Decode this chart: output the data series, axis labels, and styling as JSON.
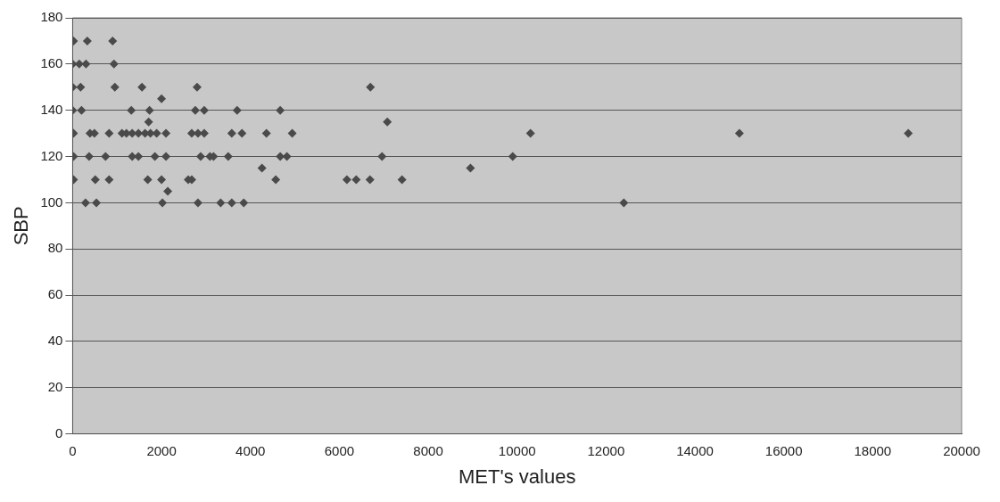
{
  "chart_data": {
    "type": "scatter",
    "xlabel": "MET's values",
    "ylabel": "SBP",
    "xlim": [
      0,
      20000
    ],
    "xticks": [
      0,
      2000,
      4000,
      6000,
      8000,
      10000,
      12000,
      14000,
      16000,
      18000,
      20000
    ],
    "ylim": [
      0,
      180
    ],
    "yticks": [
      0,
      20,
      40,
      60,
      80,
      100,
      120,
      140,
      160,
      180
    ],
    "grid": "y",
    "marker": "diamond",
    "legend": false,
    "series": [
      {
        "color": "#4a4a4a",
        "x": [
          20,
          330,
          900,
          0,
          150,
          300,
          930,
          0,
          180,
          950,
          1560,
          2800,
          6700,
          2000,
          0,
          200,
          1320,
          1730,
          2760,
          2960,
          3700,
          4670,
          1710,
          7080,
          20,
          390,
          490,
          820,
          1110,
          1210,
          1340,
          1480,
          1630,
          1750,
          1890,
          2100,
          2680,
          2820,
          2960,
          3580,
          3810,
          4360,
          4940,
          10300,
          15000,
          18800,
          20,
          370,
          740,
          1340,
          1480,
          1850,
          2100,
          2880,
          3090,
          3170,
          3500,
          4670,
          4820,
          6960,
          9900,
          4260,
          8950,
          20,
          510,
          820,
          1690,
          2000,
          2600,
          2680,
          4570,
          6170,
          6380,
          6690,
          7410,
          2140,
          290,
          535,
          2020,
          2820,
          3330,
          3580,
          3850,
          12400
        ],
        "values": [
          170,
          170,
          170,
          160,
          160,
          160,
          160,
          150,
          150,
          150,
          150,
          150,
          150,
          145,
          140,
          140,
          140,
          140,
          140,
          140,
          140,
          140,
          135,
          135,
          130,
          130,
          130,
          130,
          130,
          130,
          130,
          130,
          130,
          130,
          130,
          130,
          130,
          130,
          130,
          130,
          130,
          130,
          130,
          130,
          130,
          130,
          120,
          120,
          120,
          120,
          120,
          120,
          120,
          120,
          120,
          120,
          120,
          120,
          120,
          120,
          120,
          115,
          115,
          110,
          110,
          110,
          110,
          110,
          110,
          110,
          110,
          110,
          110,
          110,
          110,
          105,
          100,
          100,
          100,
          100,
          100,
          100,
          100,
          100
        ]
      }
    ]
  }
}
